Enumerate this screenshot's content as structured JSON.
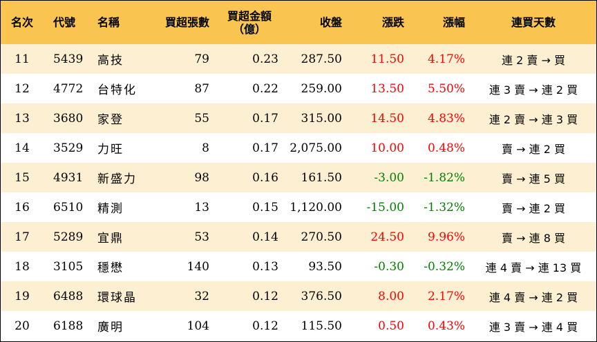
{
  "headers": {
    "rank": "名次",
    "code": "代號",
    "name": "名稱",
    "net_buy_lots": "買超張數",
    "net_buy_amount_line1": "買超金額",
    "net_buy_amount_line2": "（億）",
    "close": "收盤",
    "change": "漲跌",
    "change_pct": "漲幅",
    "consecutive_days": "連買天數"
  },
  "rows": [
    {
      "rank": "11",
      "code": "5439",
      "name": "高技",
      "lots": "79",
      "amount": "0.23",
      "close": "287.50",
      "change": "11.50",
      "pct": "4.17%",
      "dir": "up",
      "days": "連 2 賣 → 買"
    },
    {
      "rank": "12",
      "code": "4772",
      "name": "台特化",
      "lots": "87",
      "amount": "0.22",
      "close": "259.00",
      "change": "13.50",
      "pct": "5.50%",
      "dir": "up",
      "days": "連 3 賣 → 連 2 買"
    },
    {
      "rank": "13",
      "code": "3680",
      "name": "家登",
      "lots": "55",
      "amount": "0.17",
      "close": "315.00",
      "change": "14.50",
      "pct": "4.83%",
      "dir": "up",
      "days": "連 2 賣 → 連 3 買"
    },
    {
      "rank": "14",
      "code": "3529",
      "name": "力旺",
      "lots": "8",
      "amount": "0.17",
      "close": "2,075.00",
      "change": "10.00",
      "pct": "0.48%",
      "dir": "up",
      "days": "賣 → 連 2 買"
    },
    {
      "rank": "15",
      "code": "4931",
      "name": "新盛力",
      "lots": "98",
      "amount": "0.16",
      "close": "161.50",
      "change": "-3.00",
      "pct": "-1.82%",
      "dir": "down",
      "days": "賣 → 連 5 買"
    },
    {
      "rank": "16",
      "code": "6510",
      "name": "精測",
      "lots": "13",
      "amount": "0.15",
      "close": "1,120.00",
      "change": "-15.00",
      "pct": "-1.32%",
      "dir": "down",
      "days": "賣 → 連 2 買"
    },
    {
      "rank": "17",
      "code": "5289",
      "name": "宜鼎",
      "lots": "53",
      "amount": "0.14",
      "close": "270.50",
      "change": "24.50",
      "pct": "9.96%",
      "dir": "up",
      "days": "賣 → 連 8 買"
    },
    {
      "rank": "18",
      "code": "3105",
      "name": "穩懋",
      "lots": "140",
      "amount": "0.13",
      "close": "93.50",
      "change": "-0.30",
      "pct": "-0.32%",
      "dir": "down",
      "days": "連 4 賣 → 連 13 買"
    },
    {
      "rank": "19",
      "code": "6488",
      "name": "環球晶",
      "lots": "32",
      "amount": "0.12",
      "close": "376.50",
      "change": "8.00",
      "pct": "2.17%",
      "dir": "up",
      "days": "連 4 賣 → 連 2 買"
    },
    {
      "rank": "20",
      "code": "6188",
      "name": "廣明",
      "lots": "104",
      "amount": "0.12",
      "close": "115.50",
      "change": "0.50",
      "pct": "0.43%",
      "dir": "up",
      "days": "連 3 賣 → 連 4 買"
    }
  ],
  "colors": {
    "header_bg": "#f9c450",
    "stripe_bg": "#fdf0d2",
    "up": "#ff0000",
    "down": "#008000"
  }
}
